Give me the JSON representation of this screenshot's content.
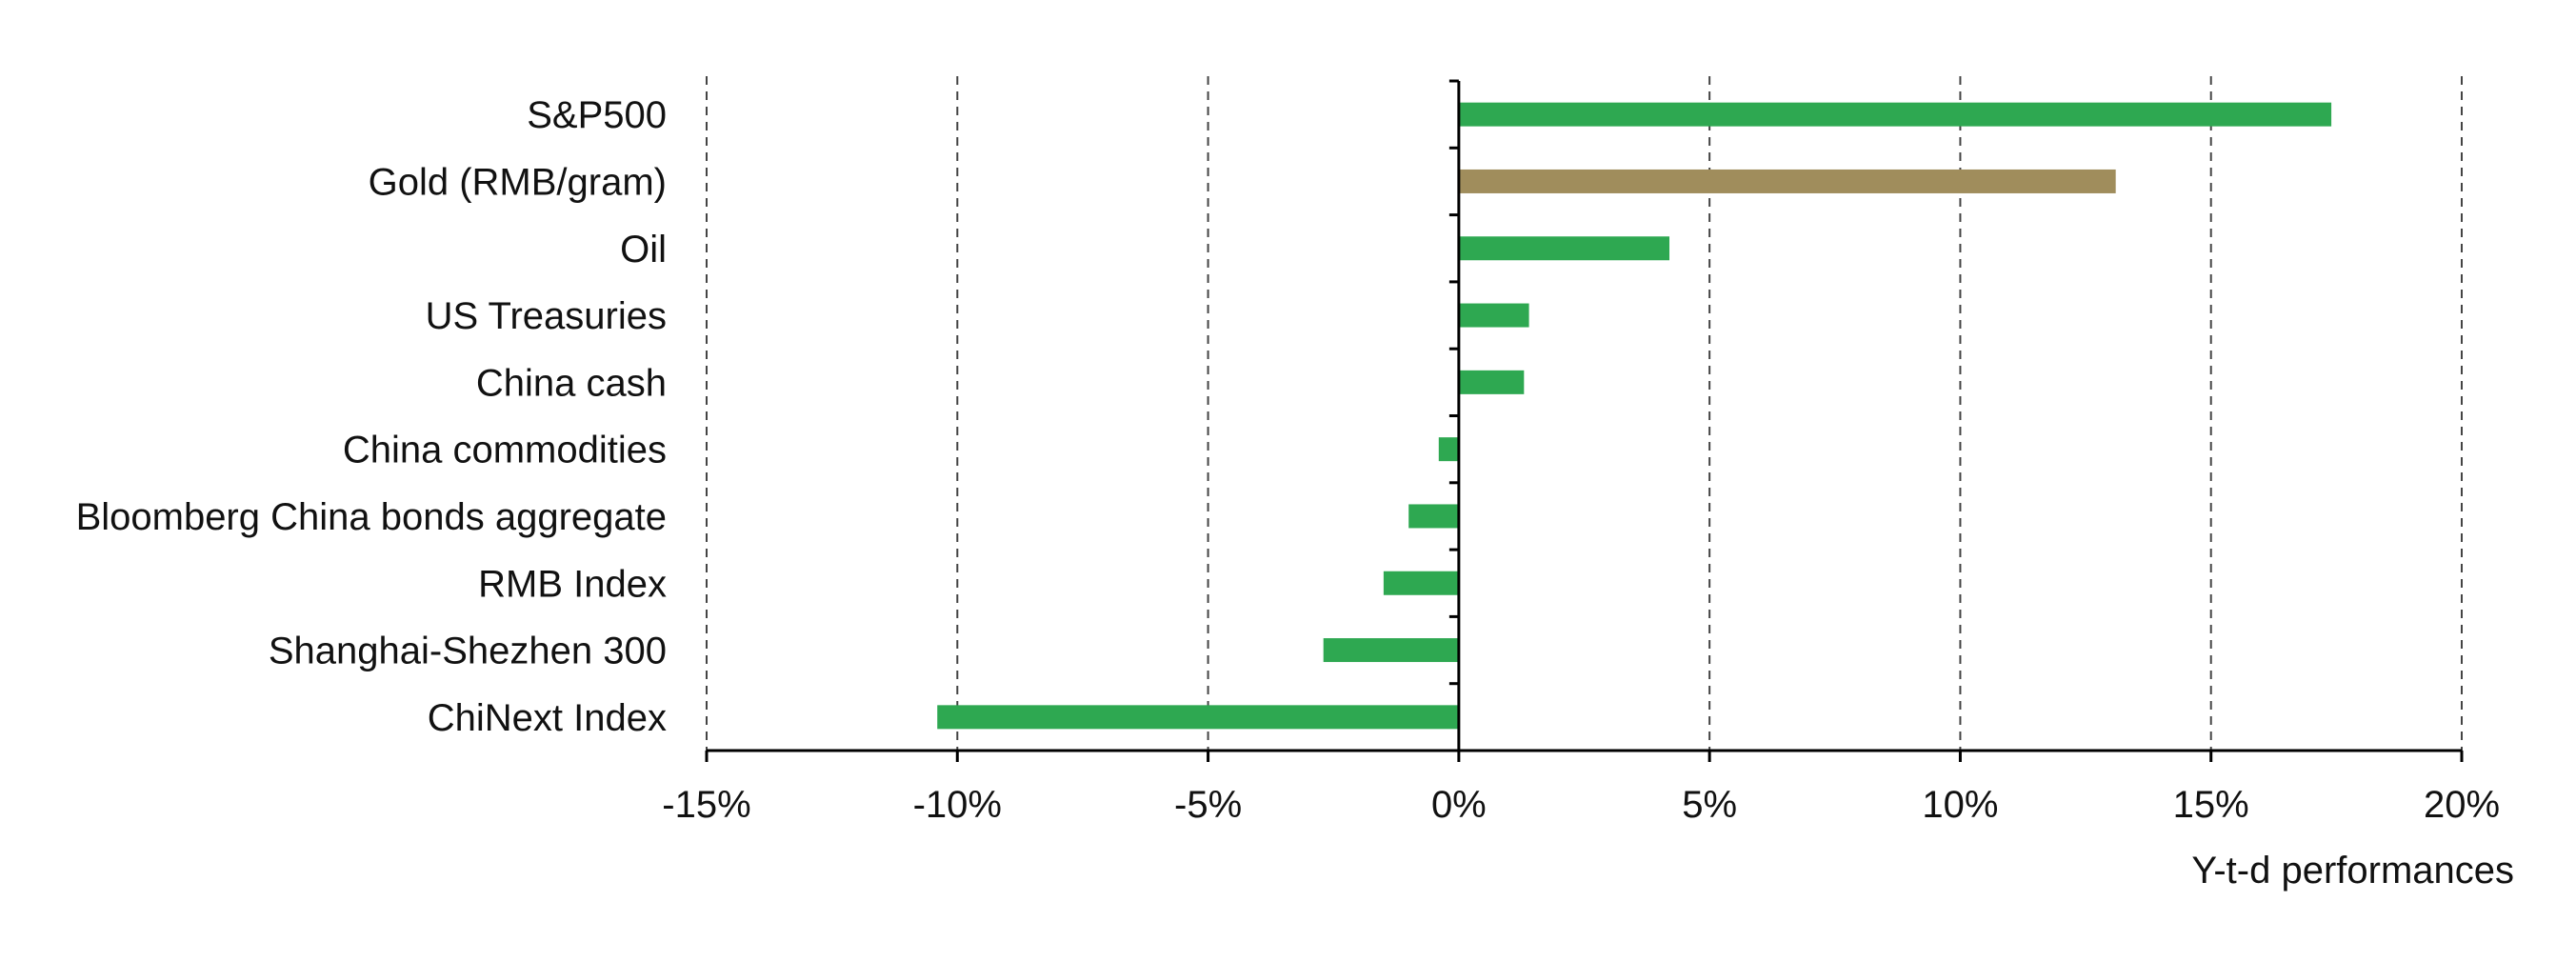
{
  "chart_data": {
    "type": "bar",
    "orientation": "horizontal",
    "title": "",
    "xlabel": "Y-t-d performances",
    "ylabel": "",
    "categories": [
      "S&P500",
      "Gold (RMB/gram)",
      "Oil",
      "US Treasuries",
      "China cash",
      "China commodities",
      "Bloomberg China bonds aggregate",
      "RMB Index",
      "Shanghai-Shezhen 300",
      "ChiNext Index"
    ],
    "series": [
      {
        "values": [
          17.4,
          13.1,
          4.2,
          1.4,
          1.3,
          -0.4,
          -1.0,
          -1.5,
          -2.7,
          -10.4
        ],
        "colors": [
          "#2ea851",
          "#a08d5c",
          "#2ea851",
          "#2ea851",
          "#2ea851",
          "#2ea851",
          "#2ea851",
          "#2ea851",
          "#2ea851",
          "#2ea851"
        ]
      }
    ],
    "xlim": [
      -15,
      20
    ],
    "xticks": [
      -15,
      -10,
      -5,
      0,
      5,
      10,
      15,
      20
    ],
    "tick_format": "{v}%",
    "grid": "vertical dashed",
    "legend": "none",
    "colors": {
      "primary": "#2ea851",
      "highlight": "#a08d5c",
      "axis": "#000000",
      "grid": "#444444"
    }
  }
}
